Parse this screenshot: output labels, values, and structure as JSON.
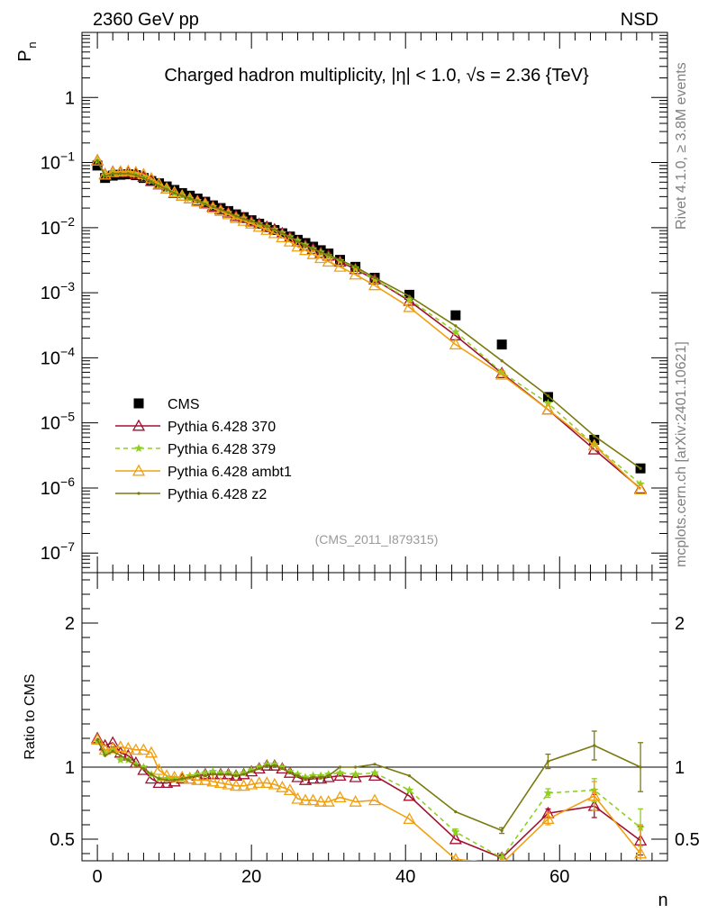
{
  "header": {
    "left": "2360 GeV pp",
    "right": "NSD",
    "title": "Charged hadron multiplicity, |η| < 1.0, √s = 2.36 {TeV}",
    "side_top": "Rivet 4.1.0, ≥ 3.8M events",
    "side_bottom": "mcplots.cern.ch [arXiv:2401.10621]",
    "analysis": "(CMS_2011_I879315)"
  },
  "chart_data": [
    {
      "type": "scatter",
      "title": "Charged hadron multiplicity, |η| < 1.0, √s = 2.36 {TeV}",
      "ylabel": "Pn",
      "yscale": "log",
      "ylim": [
        5e-08,
        10
      ],
      "xlim": [
        -2,
        74
      ],
      "ytick_labels": [
        "1",
        "10^-1",
        "10^-2",
        "10^-3",
        "10^-4",
        "10^-5",
        "10^-6",
        "10^-7"
      ],
      "legend": [
        "CMS",
        "Pythia 6.428 370",
        "Pythia 6.428 379",
        "Pythia 6.428 ambt1",
        "Pythia 6.428 z2"
      ],
      "x": [
        0,
        1,
        2,
        3,
        4,
        5,
        6,
        7,
        8,
        9,
        10,
        11,
        12,
        13,
        14,
        15,
        16,
        17,
        18,
        19,
        20,
        21,
        22,
        23,
        24,
        25,
        26,
        27,
        28,
        29,
        30,
        31.5,
        33.5,
        36,
        40.5,
        46.5,
        52.5,
        58.5,
        64.5,
        70.5
      ],
      "series": [
        {
          "name": "CMS",
          "color": "#000000",
          "marker": "square",
          "values": [
            0.09,
            0.058,
            0.063,
            0.065,
            0.066,
            0.064,
            0.058,
            0.052,
            0.048,
            0.043,
            0.038,
            0.034,
            0.031,
            0.028,
            0.025,
            0.022,
            0.02,
            0.018,
            0.016,
            0.0145,
            0.013,
            0.0115,
            0.0102,
            0.0092,
            0.0082,
            0.0073,
            0.0065,
            0.0058,
            0.0051,
            0.0045,
            0.004,
            0.0032,
            0.0025,
            0.0017,
            0.00093,
            0.00045,
            0.00016,
            2.5e-05,
            5.5e-06,
            2e-06
          ]
        },
        {
          "name": "Pythia 6.428 370",
          "color": "#a01030",
          "marker": "triangle-open",
          "values": [
            0.108,
            0.066,
            0.072,
            0.071,
            0.071,
            0.066,
            0.06,
            0.052,
            0.046,
            0.04,
            0.034,
            0.031,
            0.028,
            0.026,
            0.024,
            0.021,
            0.019,
            0.017,
            0.015,
            0.014,
            0.0124,
            0.0114,
            0.0103,
            0.0094,
            0.0082,
            0.0071,
            0.0061,
            0.0053,
            0.0047,
            0.0041,
            0.0037,
            0.003,
            0.0023,
            0.0016,
            0.00075,
            0.00022,
            5.8e-05,
            1.6e-05,
            3.9e-06,
            9.8e-07
          ]
        },
        {
          "name": "Pythia 6.428 379",
          "color": "#8fcf20",
          "marker": "star",
          "values": [
            0.106,
            0.064,
            0.07,
            0.068,
            0.069,
            0.065,
            0.059,
            0.052,
            0.045,
            0.04,
            0.034,
            0.031,
            0.028,
            0.026,
            0.024,
            0.021,
            0.019,
            0.017,
            0.015,
            0.014,
            0.0125,
            0.0114,
            0.0103,
            0.0094,
            0.0083,
            0.0072,
            0.0063,
            0.0054,
            0.0047,
            0.0042,
            0.0037,
            0.0031,
            0.0024,
            0.0016,
            0.00079,
            0.00025,
            6e-05,
            2e-05,
            4.6e-06,
            1.15e-06
          ]
        },
        {
          "name": "Pythia 6.428 ambt1",
          "color": "#f0a010",
          "marker": "triangle-open",
          "values": [
            0.107,
            0.065,
            0.071,
            0.073,
            0.074,
            0.071,
            0.066,
            0.057,
            0.047,
            0.04,
            0.035,
            0.031,
            0.028,
            0.025,
            0.023,
            0.02,
            0.018,
            0.016,
            0.014,
            0.0127,
            0.0115,
            0.0103,
            0.0092,
            0.0082,
            0.0071,
            0.0061,
            0.0051,
            0.0045,
            0.0039,
            0.0034,
            0.003,
            0.0025,
            0.0019,
            0.0013,
            0.0006,
            0.00016,
            5.5e-05,
            1.6e-05,
            4.5e-06,
            9.5e-07
          ]
        },
        {
          "name": "Pythia 6.428 z2",
          "color": "#7a7a10",
          "marker": "dot",
          "values": [
            0.107,
            0.062,
            0.068,
            0.068,
            0.068,
            0.064,
            0.058,
            0.051,
            0.044,
            0.039,
            0.034,
            0.031,
            0.028,
            0.026,
            0.023,
            0.021,
            0.019,
            0.017,
            0.015,
            0.0136,
            0.0126,
            0.0116,
            0.0104,
            0.0093,
            0.0082,
            0.0072,
            0.0061,
            0.0053,
            0.0047,
            0.0042,
            0.0038,
            0.0032,
            0.0025,
            0.0017,
            0.00088,
            0.00031,
            9e-05,
            2.6e-05,
            6.3e-06,
            2e-06
          ]
        }
      ]
    },
    {
      "type": "line",
      "ylabel": "Ratio to CMS",
      "xlabel": "n",
      "ylim": [
        0.35,
        2.35
      ],
      "xlim": [
        -2,
        74
      ],
      "x_tick_labels": [
        "0",
        "20",
        "40",
        "60"
      ],
      "y_tick_labels": [
        "0.5",
        "1",
        "2"
      ],
      "reference_line": 1,
      "x": [
        0,
        1,
        2,
        3,
        4,
        5,
        6,
        7,
        8,
        9,
        10,
        11,
        12,
        13,
        14,
        15,
        16,
        17,
        18,
        19,
        20,
        21,
        22,
        23,
        24,
        25,
        26,
        27,
        28,
        29,
        30,
        31.5,
        33.5,
        36,
        40.5,
        46.5,
        52.5,
        58.5,
        64.5,
        70.5
      ],
      "series": [
        {
          "name": "Pythia 6.428 370",
          "color": "#a01030",
          "values": [
            1.2,
            1.15,
            1.17,
            1.1,
            1.08,
            1.03,
            0.98,
            0.92,
            0.89,
            0.89,
            0.9,
            0.92,
            0.92,
            0.94,
            0.95,
            0.95,
            0.95,
            0.95,
            0.94,
            0.95,
            0.97,
            0.99,
            1.01,
            1.01,
            0.99,
            0.96,
            0.93,
            0.91,
            0.92,
            0.92,
            0.93,
            0.94,
            0.93,
            0.94,
            0.8,
            0.5,
            0.37,
            0.68,
            0.73,
            0.49
          ],
          "errors": [
            0.01,
            0.01,
            0.01,
            0.01,
            0.01,
            0.01,
            0.01,
            0.01,
            0.01,
            0.01,
            0.01,
            0.01,
            0.01,
            0.01,
            0.01,
            0.01,
            0.01,
            0.01,
            0.01,
            0.01,
            0.01,
            0.01,
            0.01,
            0.01,
            0.01,
            0.01,
            0.01,
            0.01,
            0.01,
            0.01,
            0.01,
            0.01,
            0.01,
            0.01,
            0.01,
            0.01,
            0.02,
            0.03,
            0.08,
            0.1
          ]
        },
        {
          "name": "Pythia 6.428 379",
          "color": "#8fcf20",
          "values": [
            1.18,
            1.1,
            1.12,
            1.05,
            1.05,
            1.02,
            1.0,
            0.95,
            0.92,
            0.92,
            0.92,
            0.92,
            0.94,
            0.95,
            0.96,
            0.97,
            0.96,
            0.96,
            0.95,
            0.96,
            0.98,
            1.0,
            1.02,
            1.02,
            1.0,
            0.97,
            0.95,
            0.93,
            0.94,
            0.94,
            0.95,
            0.96,
            0.95,
            0.96,
            0.84,
            0.55,
            0.37,
            0.82,
            0.84,
            0.58
          ],
          "errors": [
            0.01,
            0.01,
            0.01,
            0.01,
            0.01,
            0.01,
            0.01,
            0.01,
            0.01,
            0.01,
            0.01,
            0.01,
            0.01,
            0.01,
            0.01,
            0.01,
            0.01,
            0.01,
            0.01,
            0.01,
            0.01,
            0.01,
            0.01,
            0.01,
            0.01,
            0.01,
            0.01,
            0.01,
            0.01,
            0.01,
            0.01,
            0.01,
            0.01,
            0.01,
            0.01,
            0.02,
            0.03,
            0.03,
            0.08,
            0.13
          ]
        },
        {
          "name": "Pythia 6.428 ambt1",
          "color": "#f0a010",
          "values": [
            1.19,
            1.12,
            1.13,
            1.14,
            1.13,
            1.12,
            1.12,
            1.1,
            0.98,
            0.94,
            0.93,
            0.93,
            0.92,
            0.91,
            0.91,
            0.9,
            0.89,
            0.88,
            0.87,
            0.87,
            0.88,
            0.89,
            0.89,
            0.88,
            0.86,
            0.84,
            0.78,
            0.77,
            0.77,
            0.76,
            0.76,
            0.79,
            0.76,
            0.77,
            0.64,
            0.36,
            0.33,
            0.64,
            0.8,
            0.4
          ],
          "errors": [
            0.01,
            0.01,
            0.01,
            0.01,
            0.01,
            0.01,
            0.01,
            0.01,
            0.01,
            0.01,
            0.01,
            0.01,
            0.01,
            0.01,
            0.01,
            0.01,
            0.01,
            0.01,
            0.01,
            0.01,
            0.01,
            0.01,
            0.01,
            0.01,
            0.01,
            0.01,
            0.01,
            0.01,
            0.01,
            0.01,
            0.01,
            0.01,
            0.01,
            0.01,
            0.01,
            0.01,
            0.02,
            0.04,
            0.1,
            0.2
          ]
        },
        {
          "name": "Pythia 6.428 z2",
          "color": "#7a7a10",
          "values": [
            1.19,
            1.08,
            1.11,
            1.08,
            1.05,
            1.01,
            0.99,
            0.95,
            0.92,
            0.91,
            0.91,
            0.92,
            0.93,
            0.94,
            0.94,
            0.95,
            0.95,
            0.95,
            0.94,
            0.95,
            0.97,
            0.99,
            1.01,
            1.01,
            0.99,
            0.96,
            0.94,
            0.92,
            0.93,
            0.93,
            0.94,
            1.0,
            1.0,
            1.02,
            0.94,
            0.69,
            0.56,
            1.04,
            1.15,
            1.0
          ],
          "errors": [
            0.01,
            0.01,
            0.01,
            0.01,
            0.01,
            0.01,
            0.01,
            0.01,
            0.01,
            0.01,
            0.01,
            0.01,
            0.01,
            0.01,
            0.01,
            0.01,
            0.01,
            0.01,
            0.01,
            0.01,
            0.01,
            0.01,
            0.01,
            0.01,
            0.01,
            0.01,
            0.01,
            0.01,
            0.01,
            0.01,
            0.01,
            0.01,
            0.01,
            0.01,
            0.01,
            0.01,
            0.02,
            0.05,
            0.1,
            0.17
          ]
        }
      ]
    }
  ]
}
